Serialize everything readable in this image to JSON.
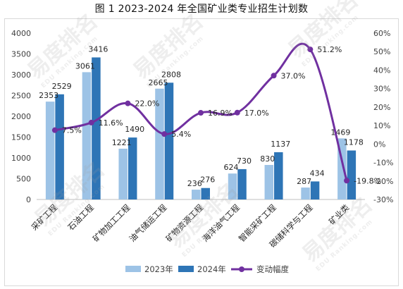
{
  "chart_data": {
    "type": "bar+line",
    "title": "图 1 2023-2024 年全国矿业类专业招生计划数",
    "categories": [
      "采矿工程",
      "石油工程",
      "矿物加工工程",
      "油气储运工程",
      "矿物资源工程",
      "海洋油气工程",
      "智能采矿工程",
      "碳储科学与工程",
      "矿业类"
    ],
    "series": [
      {
        "name": "2023年",
        "axis": "left",
        "color": "#9dc3e6",
        "values": [
          2353,
          3061,
          1221,
          2665,
          236,
          624,
          830,
          287,
          1469
        ]
      },
      {
        "name": "2024年",
        "axis": "left",
        "color": "#2e75b6",
        "values": [
          2529,
          3416,
          1490,
          2808,
          276,
          730,
          1137,
          434,
          1178
        ]
      },
      {
        "name": "变动幅度",
        "axis": "right",
        "type": "line",
        "color": "#7030a0",
        "values": [
          7.5,
          11.6,
          22.0,
          5.4,
          16.9,
          17.0,
          37.0,
          51.2,
          -19.8
        ],
        "labels": [
          "7.5%",
          "11.6%",
          "22.0%",
          "5.4%",
          "16.9%",
          "17.0%",
          "37.0%",
          "51.2%",
          "-19.8%"
        ]
      }
    ],
    "ylim_left": [
      0,
      4000
    ],
    "yticks_left": [
      "0",
      "500",
      "1000",
      "1500",
      "2000",
      "2500",
      "3000",
      "3500",
      "4000"
    ],
    "ylim_right": [
      -30,
      60
    ],
    "yticks_right": [
      "-30%",
      "-20%",
      "-10%",
      "0%",
      "10%",
      "20%",
      "30%",
      "40%",
      "50%",
      "60%"
    ],
    "legend": "bottom",
    "grid": false
  },
  "watermark": {
    "text": "易度排名",
    "subtext": "EDU Ranking.com"
  }
}
